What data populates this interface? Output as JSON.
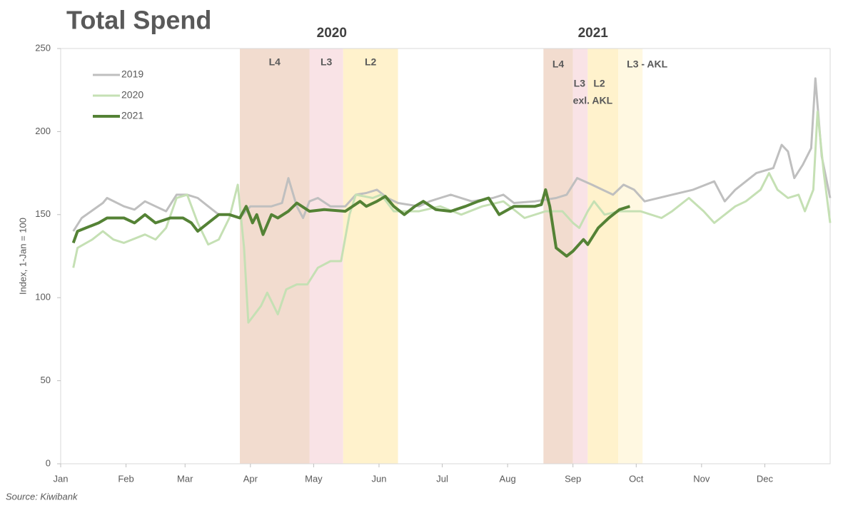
{
  "chart_data": {
    "type": "line",
    "title": "Total Spend",
    "ylabel": "Index, 1-Jan = 100",
    "source": "Source: Kiwibank",
    "period_labels": [
      "2020",
      "2021"
    ],
    "annotation": "exl. AKL",
    "xlim": [
      0,
      365
    ],
    "ylim": [
      0,
      250
    ],
    "yticks": [
      0,
      50,
      100,
      150,
      200,
      250
    ],
    "xticks": [
      {
        "value": 0,
        "label": "Jan"
      },
      {
        "value": 31,
        "label": "Feb"
      },
      {
        "value": 59,
        "label": "Mar"
      },
      {
        "value": 90,
        "label": "Apr"
      },
      {
        "value": 120,
        "label": "May"
      },
      {
        "value": 151,
        "label": "Jun"
      },
      {
        "value": 181,
        "label": "Jul"
      },
      {
        "value": 212,
        "label": "Aug"
      },
      {
        "value": 243,
        "label": "Sep"
      },
      {
        "value": 273,
        "label": "Oct"
      },
      {
        "value": 304,
        "label": "Nov"
      },
      {
        "value": 334,
        "label": "Dec"
      }
    ],
    "shading": [
      {
        "start": 85,
        "end": 118,
        "label": "L4",
        "color": "#f2dccf"
      },
      {
        "start": 118,
        "end": 134,
        "label": "L3",
        "color": "#f9e3e6"
      },
      {
        "start": 134,
        "end": 160,
        "label": "L2",
        "color": "#fff2cc"
      },
      {
        "start": 229,
        "end": 243,
        "label": "L4",
        "color": "#f2dccf"
      },
      {
        "start": 243,
        "end": 250,
        "label": "L3",
        "color": "#f9e3e6"
      },
      {
        "start": 250,
        "end": 264.5,
        "label": "L2",
        "color": "#fff2cc"
      },
      {
        "start": 264.5,
        "end": 276,
        "label": "L3 - AKL",
        "color": "#fff8e1"
      }
    ],
    "series": [
      {
        "name": "2019",
        "color": "#bfbfbf",
        "width": 3,
        "x": [
          6,
          10,
          20,
          22,
          30,
          35,
          40,
          45,
          50,
          55,
          60,
          65,
          70,
          75,
          80,
          85,
          90,
          100,
          105,
          108,
          112,
          115,
          118,
          122,
          128,
          135,
          140,
          145,
          150,
          155,
          160,
          170,
          175,
          180,
          185,
          195,
          205,
          210,
          215,
          225,
          235,
          240,
          245,
          252,
          257,
          262,
          267,
          272,
          277,
          290,
          300,
          310,
          315,
          320,
          330,
          338,
          342,
          345,
          348,
          352,
          356,
          358,
          361,
          365
        ],
        "values": [
          140,
          148,
          157,
          160,
          155,
          153,
          158,
          155,
          152,
          162,
          162,
          160,
          155,
          150,
          150,
          148,
          155,
          155,
          157,
          172,
          155,
          148,
          158,
          160,
          155,
          155,
          162,
          163,
          165,
          160,
          157,
          155,
          158,
          160,
          162,
          158,
          160,
          162,
          157,
          158,
          160,
          162,
          172,
          168,
          165,
          162,
          168,
          165,
          158,
          162,
          165,
          170,
          158,
          165,
          175,
          178,
          192,
          188,
          172,
          180,
          190,
          232,
          185,
          160
        ]
      },
      {
        "name": "2020",
        "color": "#c5e0b4",
        "width": 3,
        "x": [
          6,
          8,
          15,
          20,
          25,
          30,
          40,
          45,
          50,
          55,
          60,
          65,
          70,
          75,
          80,
          84,
          87,
          89,
          95,
          98,
          103,
          107,
          112,
          117,
          122,
          128,
          133,
          137,
          140,
          148,
          152,
          158,
          170,
          180,
          190,
          200,
          210,
          220,
          230,
          238,
          243,
          246,
          250,
          253,
          258,
          265,
          275,
          285,
          290,
          298,
          305,
          310,
          320,
          325,
          332,
          336,
          340,
          345,
          350,
          353,
          357,
          359,
          362,
          365
        ],
        "values": [
          118,
          130,
          135,
          140,
          135,
          133,
          138,
          135,
          142,
          160,
          162,
          145,
          132,
          135,
          148,
          168,
          130,
          85,
          95,
          103,
          90,
          105,
          108,
          108,
          118,
          122,
          122,
          150,
          162,
          160,
          162,
          152,
          152,
          155,
          150,
          155,
          158,
          148,
          152,
          152,
          145,
          142,
          152,
          158,
          150,
          152,
          152,
          148,
          152,
          160,
          152,
          145,
          155,
          158,
          165,
          175,
          165,
          160,
          162,
          152,
          165,
          212,
          175,
          145
        ]
      },
      {
        "name": "2021",
        "color": "#548235",
        "width": 4,
        "x": [
          6,
          8,
          12,
          18,
          22,
          30,
          35,
          40,
          45,
          52,
          58,
          62,
          65,
          70,
          75,
          80,
          85,
          88,
          91,
          93,
          96,
          100,
          103,
          108,
          112,
          118,
          125,
          135,
          142,
          145,
          150,
          154,
          158,
          163,
          168,
          172,
          178,
          185,
          192,
          198,
          203,
          208,
          215,
          225,
          228,
          230,
          232,
          235,
          240,
          243,
          248,
          250,
          255,
          260,
          265,
          270
        ],
        "values": [
          133,
          140,
          142,
          145,
          148,
          148,
          145,
          150,
          145,
          148,
          148,
          145,
          140,
          145,
          150,
          150,
          148,
          155,
          145,
          150,
          138,
          150,
          148,
          152,
          157,
          152,
          153,
          152,
          158,
          155,
          158,
          161,
          155,
          150,
          155,
          158,
          153,
          152,
          155,
          158,
          160,
          150,
          155,
          155,
          156,
          165,
          155,
          130,
          125,
          128,
          135,
          132,
          142,
          148,
          153,
          155
        ]
      }
    ]
  }
}
